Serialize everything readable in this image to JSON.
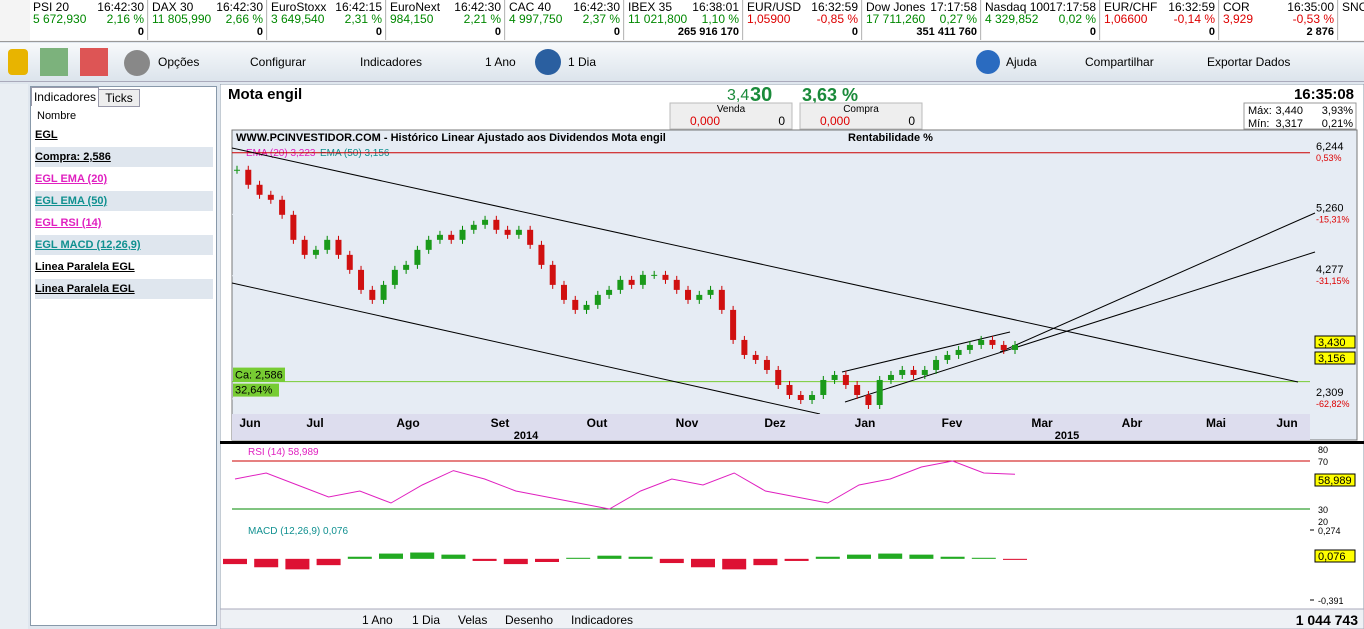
{
  "tickers": [
    {
      "name": "PSI 20",
      "time": "16:42:30",
      "value": "5 672,930",
      "change": "2,16 %",
      "volume": "0"
    },
    {
      "name": "DAX 30",
      "time": "16:42:30",
      "value": "11 805,990",
      "change": "2,66 %",
      "volume": "0"
    },
    {
      "name": "EuroStoxx",
      "time": "16:42:15",
      "value": "3 649,540",
      "change": "2,31 %",
      "volume": "0"
    },
    {
      "name": "EuroNext",
      "time": "16:42:30",
      "value": "984,150",
      "change": "2,21 %",
      "volume": "0"
    },
    {
      "name": "CAC 40",
      "time": "16:42:30",
      "value": "4 997,750",
      "change": "2,37 %",
      "volume": "0"
    },
    {
      "name": "IBEX 35",
      "time": "16:38:01",
      "value": "11 021,800",
      "change": "1,10 %",
      "volume": "265 916 170"
    },
    {
      "name": "EUR/USD",
      "time": "16:32:59",
      "value": "1,05900",
      "change": "-0,85 %",
      "volume": "0"
    },
    {
      "name": "Dow Jones",
      "time": "17:17:58",
      "value": "17 711,260",
      "change": "0,27 %",
      "volume": "351 411 760"
    },
    {
      "name": "Nasdaq 100",
      "time": "17:17:58",
      "value": "4 329,852",
      "change": "0,02 %",
      "volume": "0"
    },
    {
      "name": "EUR/CHF",
      "time": "16:32:59",
      "value": "1,06600",
      "change": "-0,14 %",
      "volume": "0"
    },
    {
      "name": "COR",
      "time": "16:35:00",
      "value": "3,929",
      "change": "-0,53 %",
      "volume": "2 876"
    },
    {
      "name": "SNC",
      "time": "",
      "value": "",
      "change": "",
      "volume": ""
    }
  ],
  "toolbar": {
    "options": "Opções",
    "configure": "Configurar",
    "indicators": "Indicadores",
    "period": "1 Ano",
    "interval": "1 Dia",
    "help": "Ajuda",
    "share": "Compartilhar",
    "export": "Exportar Dados"
  },
  "side_panel": {
    "tabs": [
      "Indicadores",
      "Ticks"
    ],
    "header": "Nombre",
    "items": [
      {
        "label": "EGL",
        "color": "#000000"
      },
      {
        "label": "Compra: 2,586",
        "color": "#000000"
      },
      {
        "label": "EGL EMA (20)",
        "color": "#e020c0"
      },
      {
        "label": "EGL EMA (50)",
        "color": "#109090"
      },
      {
        "label": "EGL RSI (14)",
        "color": "#e020c0"
      },
      {
        "label": "EGL MACD (12,26,9)",
        "color": "#109090"
      },
      {
        "label": "Linea Paralela EGL",
        "color": "#000000"
      },
      {
        "label": "Linea Paralela EGL",
        "color": "#000000"
      }
    ]
  },
  "quote": {
    "title": "Mota engil",
    "price_small": "3,4",
    "price_big": "30",
    "change": "3,63 %",
    "sell_label": "Venda",
    "sell_price": "0,000",
    "sell_qty": "0",
    "buy_label": "Compra",
    "buy_price": "0,000",
    "buy_qty": "0",
    "time": "16:35:08",
    "max_label": "Máx:",
    "max": "3,440",
    "max_pct": "3,93%",
    "min_label": "Mín:",
    "min": "3,317",
    "min_pct": "0,21%"
  },
  "chart": {
    "header": "WWW.PCINVESTIDOR.COM - Histórico Linear  Ajustado aos Dividendos Mota engil",
    "header_right": "Rentabilidade %",
    "ema20_label": "EMA (20) 3,223",
    "ema50_label": "EMA (50) 3,156",
    "ylim": [
      2.1,
      6.4
    ],
    "yticks": [
      {
        "value": 6.244,
        "label": "6,244"
      },
      {
        "value": 5.26,
        "label": "5,260"
      },
      {
        "value": 4.277,
        "label": "4,277"
      },
      {
        "value": 2.309,
        "label": "2,309"
      }
    ],
    "pct_labels": [
      "0,53%",
      "-15,31%",
      "-31,15%",
      "-62,82%"
    ],
    "last_label": "3,430",
    "ema_tag": "3,156",
    "ca_label": "Ca: 2,586",
    "ca_level": 2.586,
    "ca_pct": "32,64%",
    "months": [
      "Jun",
      "Jul",
      "Ago",
      "Set",
      "Out",
      "Nov",
      "Dez",
      "Jan",
      "Fev",
      "Mar",
      "Abr",
      "Mai",
      "Jun"
    ],
    "years": [
      "2014",
      "2015"
    ],
    "closes": [
      5.972,
      5.732,
      5.572,
      5.492,
      5.252,
      4.852,
      4.612,
      4.692,
      4.852,
      4.612,
      4.372,
      4.052,
      3.892,
      4.132,
      4.372,
      4.452,
      4.692,
      4.852,
      4.932,
      4.852,
      5.012,
      5.092,
      5.172,
      5.012,
      4.932,
      5.012,
      4.772,
      4.452,
      4.132,
      3.892,
      3.732,
      3.812,
      3.972,
      4.052,
      4.212,
      4.132,
      4.292,
      4.292,
      4.212,
      4.052,
      3.892,
      3.972,
      4.052,
      3.732,
      3.252,
      3.012,
      2.932,
      2.772,
      2.532,
      2.372,
      2.292,
      2.372,
      2.612,
      2.692,
      2.532,
      2.372,
      2.212,
      2.612,
      2.692,
      2.772,
      2.692,
      2.772,
      2.932,
      3.012,
      3.092,
      3.172,
      3.252,
      3.172,
      3.092,
      3.172
    ],
    "rsi": {
      "label": "RSI (14) 58,989",
      "current": "58,989",
      "ylim": [
        20,
        80
      ],
      "yticks": [
        80,
        70,
        30,
        20
      ],
      "values": [
        55,
        60,
        50,
        40,
        45,
        35,
        50,
        62,
        55,
        45,
        40,
        35,
        30,
        45,
        55,
        50,
        60,
        45,
        40,
        35,
        50,
        55,
        65,
        70,
        60,
        59
      ]
    },
    "macd": {
      "label": "MACD (12,26,9) 0,076",
      "current": "0,076",
      "ylim": [
        -0.391,
        0.274
      ],
      "yticks": [
        {
          "value": 0.274,
          "label": "0,274"
        },
        {
          "value": -0.391,
          "label": "-0,391"
        }
      ],
      "values": [
        -0.05,
        -0.08,
        -0.1,
        -0.06,
        0.02,
        0.05,
        0.06,
        0.04,
        -0.02,
        -0.05,
        -0.03,
        0.01,
        0.03,
        0.02,
        -0.04,
        -0.08,
        -0.1,
        -0.06,
        -0.02,
        0.02,
        0.04,
        0.05,
        0.04,
        0.02,
        0.01,
        -0.01
      ]
    }
  },
  "status_bar": {
    "period": "1 Ano",
    "interval": "1 Dia",
    "style": "Velas",
    "drawing": "Desenho",
    "indicators": "Indicadores",
    "volume": "1 044 743"
  }
}
